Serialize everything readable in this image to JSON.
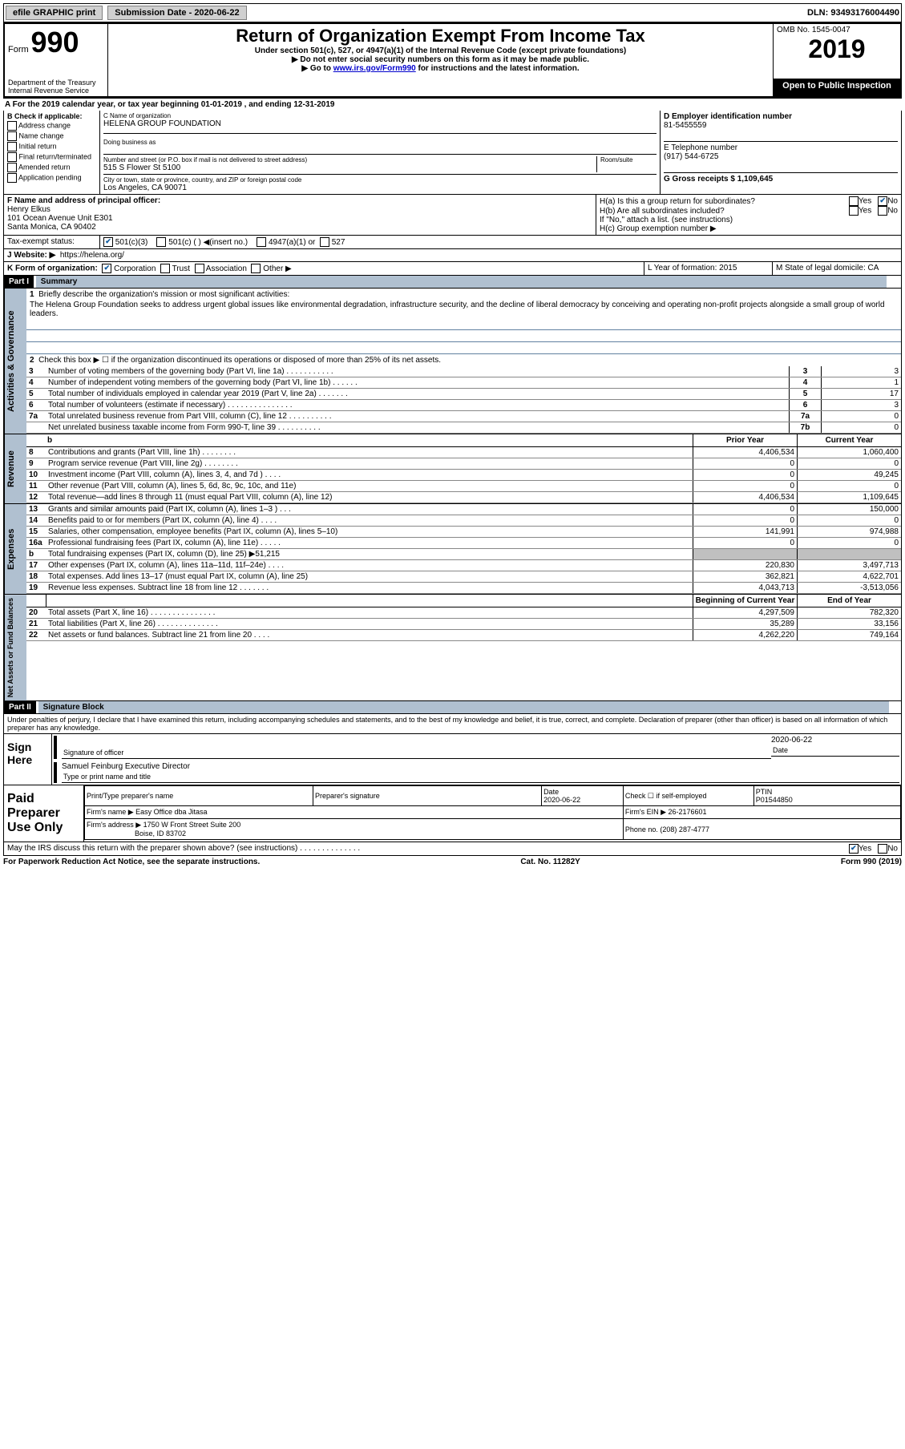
{
  "topbar": {
    "efile": "efile GRAPHIC print",
    "submission_label": "Submission Date - 2020-06-22",
    "dln": "DLN: 93493176004490"
  },
  "header": {
    "form_word": "Form",
    "form_num": "990",
    "dept": "Department of the Treasury",
    "irs": "Internal Revenue Service",
    "title": "Return of Organization Exempt From Income Tax",
    "sub1": "Under section 501(c), 527, or 4947(a)(1) of the Internal Revenue Code (except private foundations)",
    "sub2": "▶ Do not enter social security numbers on this form as it may be made public.",
    "goto_pre": "▶ Go to ",
    "goto_link": "www.irs.gov/Form990",
    "goto_post": " for instructions and the latest information.",
    "omb": "OMB No. 1545-0047",
    "year": "2019",
    "open": "Open to Public Inspection"
  },
  "sectA": {
    "line": "A For the 2019 calendar year, or tax year beginning 01-01-2019   , and ending 12-31-2019"
  },
  "sectB": {
    "title": "B Check if applicable:",
    "addr": "Address change",
    "name": "Name change",
    "init": "Initial return",
    "final": "Final return/terminated",
    "amend": "Amended return",
    "app": "Application pending"
  },
  "sectC": {
    "name_label": "C Name of organization",
    "name_val": "HELENA GROUP FOUNDATION",
    "dba_label": "Doing business as",
    "street_label": "Number and street (or P.O. box if mail is not delivered to street address)",
    "room_label": "Room/suite",
    "street_val": "515 S Flower St 5100",
    "city_label": "City or town, state or province, country, and ZIP or foreign postal code",
    "city_val": "Los Angeles, CA   90071"
  },
  "sectD": {
    "label": "D Employer identification number",
    "val": "81-5455559"
  },
  "sectE": {
    "label": "E Telephone number",
    "val": "(917) 544-6725"
  },
  "sectG": {
    "label": "G Gross receipts $ 1,109,645"
  },
  "sectF": {
    "label": "F  Name and address of principal officer:",
    "name": "Henry Elkus",
    "addr1": "101 Ocean Avenue Unit E301",
    "addr2": "Santa Monica, CA   90402"
  },
  "sectH": {
    "a": "H(a)  Is this a group return for subordinates?",
    "b": "H(b)  Are all subordinates included?",
    "bnote": "If \"No,\" attach a list. (see instructions)",
    "c": "H(c)  Group exemption number ▶",
    "yes": "Yes",
    "no": "No"
  },
  "sectI": {
    "label": "Tax-exempt status:",
    "o1": "501(c)(3)",
    "o2": "501(c) (  ) ◀(insert no.)",
    "o3": "4947(a)(1) or",
    "o4": "527"
  },
  "sectJ": {
    "label": "J Website: ▶",
    "val": "https://helena.org/"
  },
  "sectK": {
    "label": "K Form of organization:",
    "corp": "Corporation",
    "trust": "Trust",
    "assoc": "Association",
    "other": "Other ▶"
  },
  "sectL": {
    "label": "L Year of formation: 2015"
  },
  "sectM": {
    "label": "M State of legal domicile: CA"
  },
  "part1": {
    "label": "Part I",
    "title": "Summary",
    "q1": "Briefly describe the organization's mission or most significant activities:",
    "mission": "The Helena Group Foundation seeks to address urgent global issues like environmental degradation, infrastructure security, and the decline of liberal democracy by conceiving and operating non-profit projects alongside a small group of world leaders.",
    "q2": "Check this box ▶ ☐  if the organization discontinued its operations or disposed of more than 25% of its net assets.",
    "lines": [
      {
        "n": "3",
        "t": "Number of voting members of the governing body (Part VI, line 1a)  .  .  .  .  .  .  .  .  .  .  .",
        "b": "3",
        "v": "3"
      },
      {
        "n": "4",
        "t": "Number of independent voting members of the governing body (Part VI, line 1b)  .  .  .  .  .  .",
        "b": "4",
        "v": "1"
      },
      {
        "n": "5",
        "t": "Total number of individuals employed in calendar year 2019 (Part V, line 2a)  .  .  .  .  .  .  .",
        "b": "5",
        "v": "17"
      },
      {
        "n": "6",
        "t": "Total number of volunteers (estimate if necessary)   .   .   .   .   .   .   .   .   .   .   .   .   .   .   .",
        "b": "6",
        "v": "3"
      },
      {
        "n": "7a",
        "t": "Total unrelated business revenue from Part VIII, column (C), line 12  .  .  .  .  .  .  .  .  .  .",
        "b": "7a",
        "v": "0"
      },
      {
        "n": "",
        "t": "Net unrelated business taxable income from Form 990-T, line 39   .   .   .   .   .   .   .   .   .   .",
        "b": "7b",
        "v": "0"
      }
    ],
    "side_label_ag": "Activities & Governance"
  },
  "fin": {
    "h_prior": "Prior Year",
    "h_curr": "Current Year",
    "rev_label": "Revenue",
    "rev": [
      {
        "n": "8",
        "t": "Contributions and grants (Part VIII, line 1h)   .   .   .   .   .   .   .   .",
        "p": "4,406,534",
        "c": "1,060,400"
      },
      {
        "n": "9",
        "t": "Program service revenue (Part VIII, line 2g)   .   .   .   .   .   .   .   .",
        "p": "0",
        "c": "0"
      },
      {
        "n": "10",
        "t": "Investment income (Part VIII, column (A), lines 3, 4, and 7d )   .   .   .   .",
        "p": "0",
        "c": "49,245"
      },
      {
        "n": "11",
        "t": "Other revenue (Part VIII, column (A), lines 5, 6d, 8c, 9c, 10c, and 11e)",
        "p": "0",
        "c": "0"
      },
      {
        "n": "12",
        "t": "Total revenue—add lines 8 through 11 (must equal Part VIII, column (A), line 12)",
        "p": "4,406,534",
        "c": "1,109,645"
      }
    ],
    "exp_label": "Expenses",
    "exp": [
      {
        "n": "13",
        "t": "Grants and similar amounts paid (Part IX, column (A), lines 1–3 )   .   .   .",
        "p": "0",
        "c": "150,000"
      },
      {
        "n": "14",
        "t": "Benefits paid to or for members (Part IX, column (A), line 4)   .   .   .   .",
        "p": "0",
        "c": "0"
      },
      {
        "n": "15",
        "t": "Salaries, other compensation, employee benefits (Part IX, column (A), lines 5–10)",
        "p": "141,991",
        "c": "974,988"
      },
      {
        "n": "16a",
        "t": "Professional fundraising fees (Part IX, column (A), line 11e)   .   .   .   .   .",
        "p": "0",
        "c": "0"
      },
      {
        "n": "b",
        "t": "Total fundraising expenses (Part IX, column (D), line 25) ▶51,215",
        "p": "",
        "c": "",
        "grey": true
      },
      {
        "n": "17",
        "t": "Other expenses (Part IX, column (A), lines 11a–11d, 11f–24e)   .   .   .   .",
        "p": "220,830",
        "c": "3,497,713"
      },
      {
        "n": "18",
        "t": "Total expenses. Add lines 13–17 (must equal Part IX, column (A), line 25)",
        "p": "362,821",
        "c": "4,622,701"
      },
      {
        "n": "19",
        "t": "Revenue less expenses. Subtract line 18 from line 12  .   .   .   .   .   .   .",
        "p": "4,043,713",
        "c": "-3,513,056"
      }
    ],
    "na_label": "Net Assets or Fund Balances",
    "na_h1": "Beginning of Current Year",
    "na_h2": "End of Year",
    "na": [
      {
        "n": "20",
        "t": "Total assets (Part X, line 16)  .   .   .   .   .   .   .   .   .   .   .   .   .   .   .",
        "p": "4,297,509",
        "c": "782,320"
      },
      {
        "n": "21",
        "t": "Total liabilities (Part X, line 26)  .   .   .   .   .   .   .   .   .   .   .   .   .   .",
        "p": "35,289",
        "c": "33,156"
      },
      {
        "n": "22",
        "t": "Net assets or fund balances. Subtract line 21 from line 20   .   .   .   .",
        "p": "4,262,220",
        "c": "749,164"
      }
    ]
  },
  "part2": {
    "label": "Part II",
    "title": "Signature Block",
    "declare": "Under penalties of perjury, I declare that I have examined this return, including accompanying schedules and statements, and to the best of my knowledge and belief, it is true, correct, and complete. Declaration of preparer (other than officer) is based on all information of which preparer has any knowledge."
  },
  "sign": {
    "left": "Sign Here",
    "sig_label": "Signature of officer",
    "date_label": "Date",
    "date_val": "2020-06-22",
    "name": "Samuel Feinburg  Executive Director",
    "name_label": "Type or print name and title"
  },
  "prep": {
    "left": "Paid Preparer Use Only",
    "h1": "Print/Type preparer's name",
    "h2": "Preparer's signature",
    "h3": "Date",
    "h3v": "2020-06-22",
    "h4": "Check ☐  if self-employed",
    "h5": "PTIN",
    "h5v": "P01544850",
    "firm_label": "Firm's name      ▶",
    "firm_val": "Easy Office dba Jitasa",
    "ein_label": "Firm's EIN ▶",
    "ein_val": "26-2176601",
    "addr_label": "Firm's address ▶",
    "addr_val": "1750 W Front Street Suite 200",
    "addr_val2": "Boise, ID   83702",
    "phone_label": "Phone no.",
    "phone_val": "(208) 287-4777"
  },
  "discuss": {
    "q": "May the IRS discuss this return with the preparer shown above? (see instructions)   .   .   .   .   .   .   .   .   .   .   .   .   .   .",
    "yes": "Yes",
    "no": "No"
  },
  "footer": {
    "pra": "For Paperwork Reduction Act Notice, see the separate instructions.",
    "cat": "Cat. No. 11282Y",
    "form": "Form 990 (2019)"
  }
}
